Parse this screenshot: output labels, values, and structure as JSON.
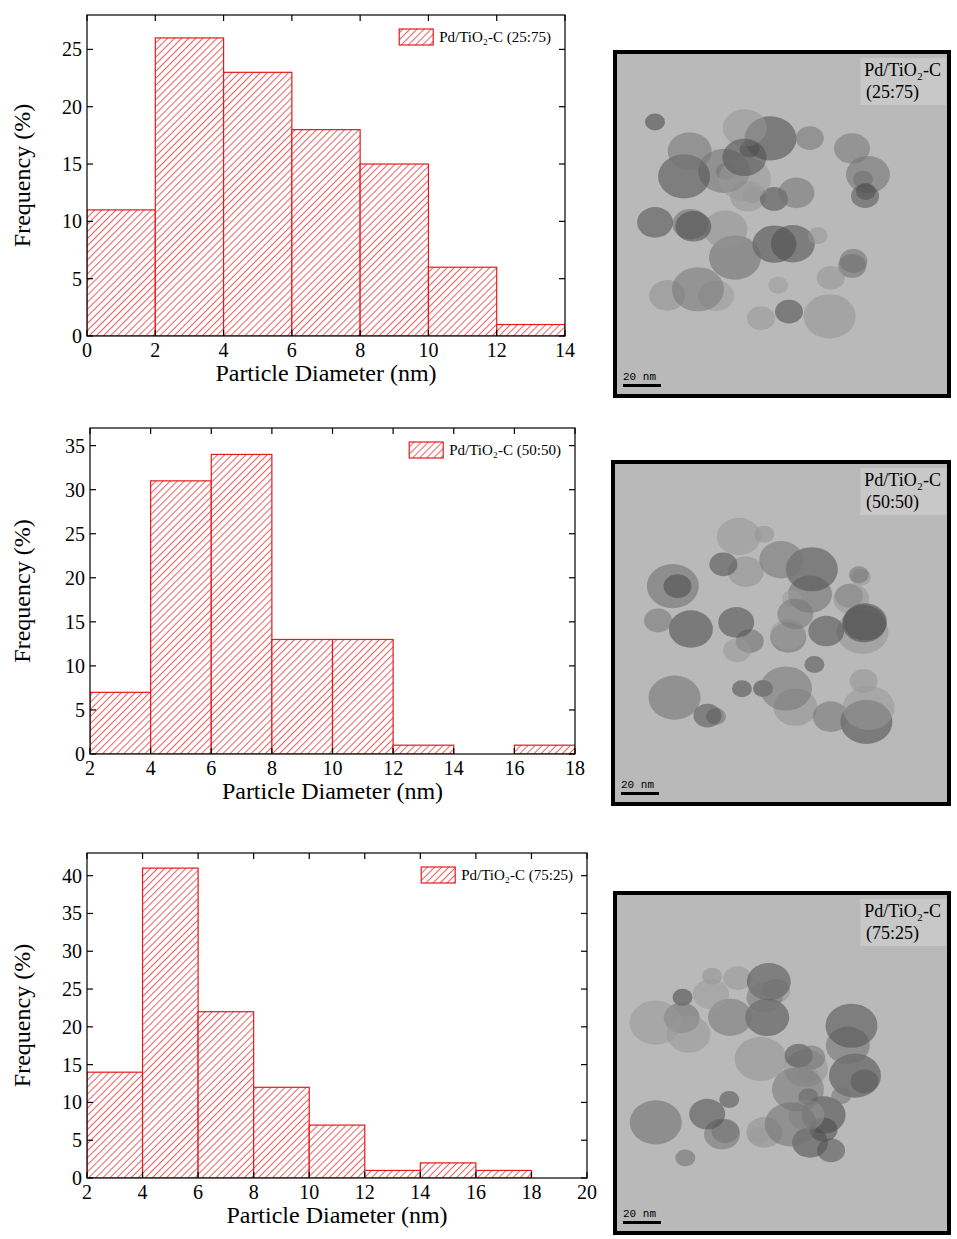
{
  "chart_data": [
    {
      "type": "histogram",
      "x_label": "Particle Diameter (nm)",
      "y_label": "Frequency (%)",
      "series": [
        {
          "name": "Pd/TiO₂-C (25:75)",
          "color": "#e41a1c"
        }
      ],
      "bins": [
        0,
        2,
        4,
        6,
        8,
        10,
        12,
        14
      ],
      "values": [
        11,
        26,
        23,
        18,
        15,
        6,
        1
      ],
      "xlim": [
        0,
        14
      ],
      "xticks": [
        0,
        2,
        4,
        6,
        8,
        10,
        12,
        14
      ],
      "ylim": [
        0,
        28
      ],
      "yticks": [
        0,
        5,
        10,
        15,
        20,
        25
      ],
      "legend": "upper right",
      "grid": false
    },
    {
      "type": "histogram",
      "x_label": "Particle Diameter (nm)",
      "y_label": "Frequency (%)",
      "series": [
        {
          "name": "Pd/TiO₂-C (50:50)",
          "color": "#e41a1c"
        }
      ],
      "bins": [
        2,
        4,
        6,
        8,
        10,
        12,
        14,
        16,
        18
      ],
      "values": [
        7,
        31,
        34,
        13,
        13,
        1,
        0,
        1
      ],
      "xlim": [
        2,
        18
      ],
      "xticks": [
        2,
        4,
        6,
        8,
        10,
        12,
        14,
        16,
        18
      ],
      "ylim": [
        0,
        37
      ],
      "yticks": [
        0,
        5,
        10,
        15,
        20,
        25,
        30,
        35
      ],
      "legend": "upper right",
      "grid": false
    },
    {
      "type": "histogram",
      "x_label": "Particle Diameter (nm)",
      "y_label": "Frequency (%)",
      "series": [
        {
          "name": "Pd/TiO₂-C (75:25)",
          "color": "#e41a1c"
        }
      ],
      "bins": [
        2,
        4,
        6,
        8,
        10,
        12,
        14,
        16,
        18,
        20
      ],
      "values": [
        14,
        41,
        22,
        12,
        7,
        1,
        2,
        1,
        0
      ],
      "xlim": [
        2,
        20
      ],
      "xticks": [
        2,
        4,
        6,
        8,
        10,
        12,
        14,
        16,
        18,
        20
      ],
      "ylim": [
        0,
        43
      ],
      "yticks": [
        0,
        5,
        10,
        15,
        20,
        25,
        30,
        35,
        40
      ],
      "legend": "upper right",
      "grid": false
    }
  ],
  "images": [
    {
      "label": "Pd/TiO₂-C",
      "sample": "(25:75)",
      "scale_bar": "20 nm"
    },
    {
      "label": "Pd/TiO₂-C",
      "sample": "(50:50)",
      "scale_bar": "20 nm"
    },
    {
      "label": "Pd/TiO₂-C",
      "sample": "(75:25)",
      "scale_bar": "20 nm"
    }
  ]
}
